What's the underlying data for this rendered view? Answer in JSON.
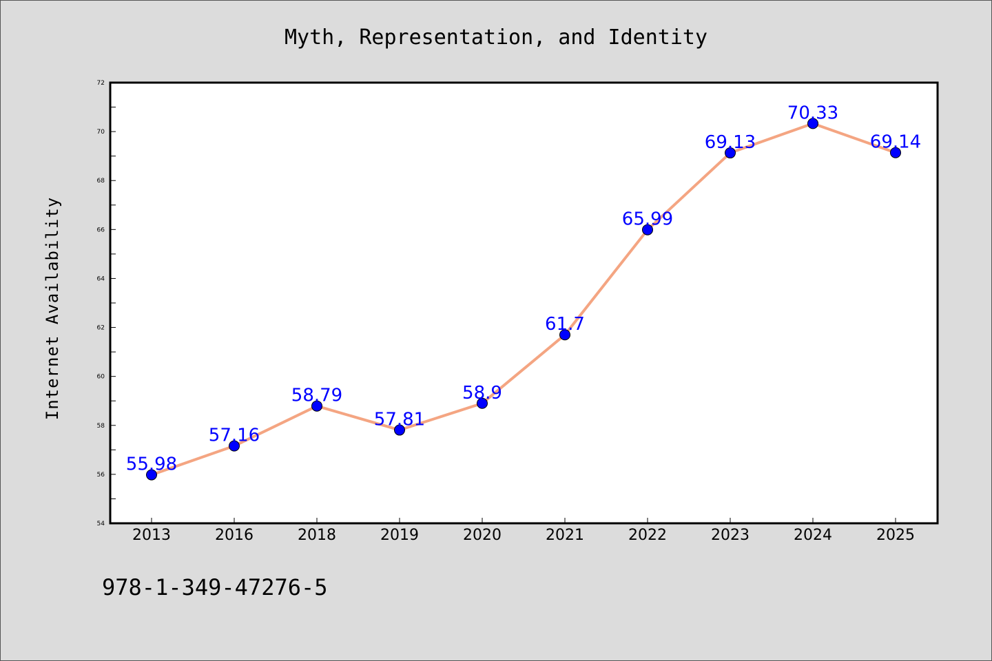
{
  "chart_data": {
    "type": "line",
    "title": "Myth, Representation, and Identity",
    "xlabel": "",
    "ylabel": "Internet Availability",
    "categories": [
      "2013",
      "2016",
      "2018",
      "2019",
      "2020",
      "2021",
      "2022",
      "2023",
      "2024",
      "2025"
    ],
    "series": [
      {
        "values": [
          55.98,
          57.16,
          58.79,
          57.81,
          58.9,
          61.7,
          65.99,
          69.13,
          70.33,
          69.14
        ],
        "labels": [
          "55.98",
          "57.16",
          "58.79",
          "57.81",
          "58.9",
          "61.7",
          "65.99",
          "69.13",
          "70.33",
          "69.14"
        ],
        "line_color": "#f4a582",
        "marker_color": "#0000ff"
      }
    ],
    "ylim": [
      54,
      72
    ],
    "yticks": [
      "54",
      "56",
      "58",
      "60",
      "62",
      "64",
      "66",
      "68",
      "70",
      "72"
    ],
    "label_color": "#0000ff",
    "grid": false,
    "legend": "none"
  },
  "footer": {
    "isbn": "978-1-349-47276-5"
  }
}
